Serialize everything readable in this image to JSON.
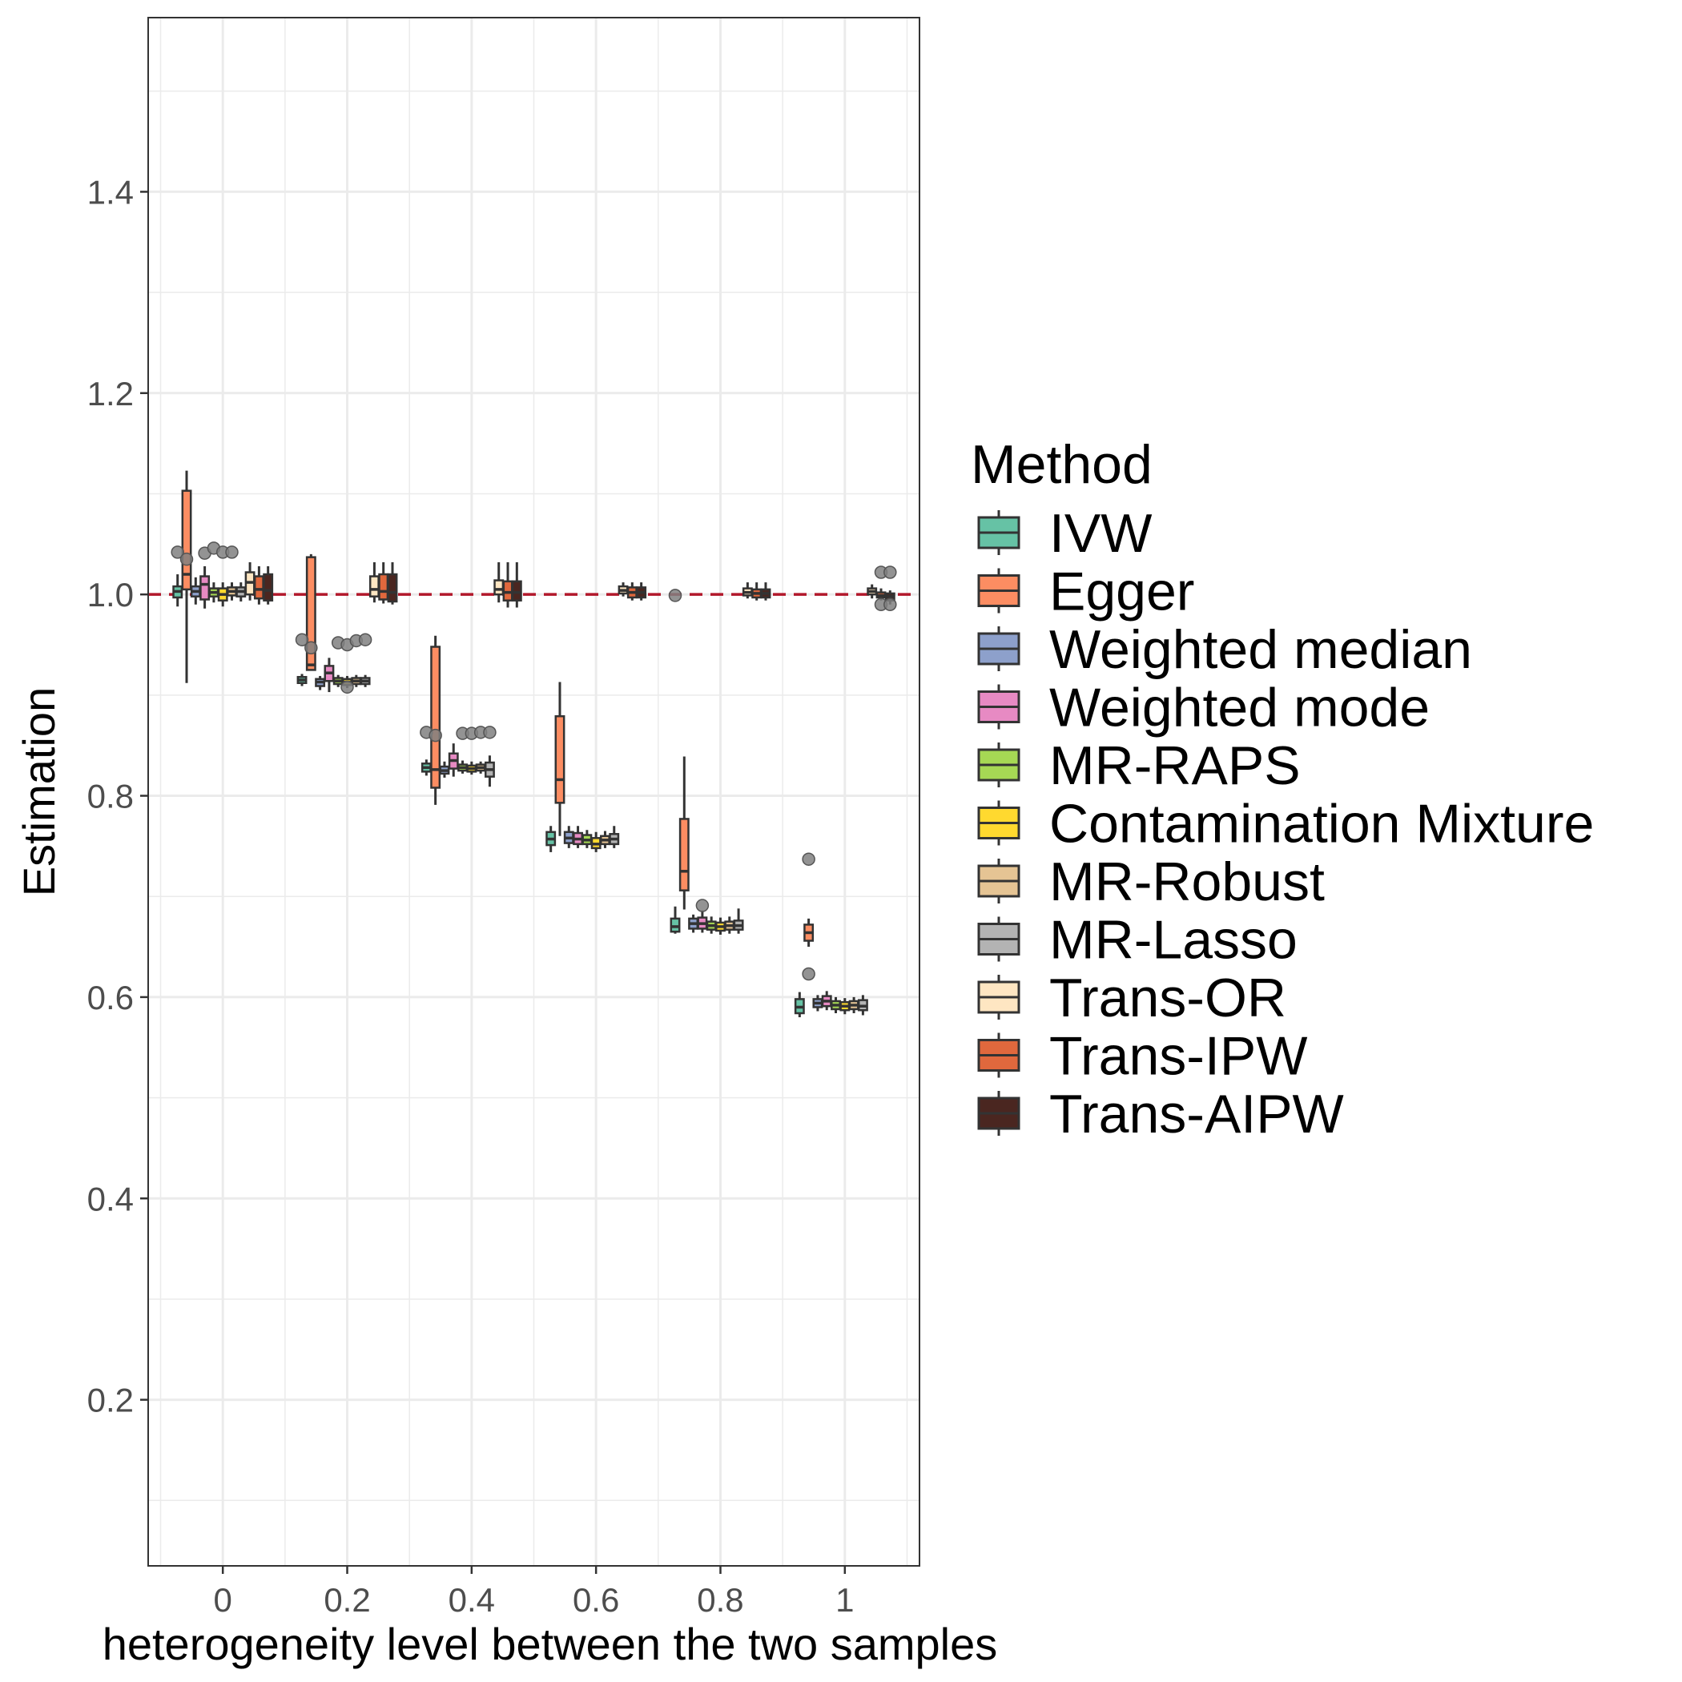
{
  "chart_data": {
    "type": "box",
    "xlabel": "heterogeneity level between the two samples",
    "ylabel": "Estimation",
    "x_ticks": [
      "0",
      "0.2",
      "0.4",
      "0.6",
      "0.8",
      "1"
    ],
    "x_tick_values": [
      0,
      0.2,
      0.4,
      0.6,
      0.8,
      1
    ],
    "xlim": [
      -0.12,
      1.12
    ],
    "y_ticks": [
      "0.2",
      "0.4",
      "0.6",
      "0.8",
      "1.0",
      "1.2",
      "1.4"
    ],
    "y_tick_values": [
      0.2,
      0.4,
      0.6,
      0.8,
      1.0,
      1.2,
      1.4
    ],
    "ylim": [
      0.035,
      1.573
    ],
    "grid": true,
    "reference_line": {
      "y": 1.0,
      "color": "#b2182b",
      "style": "dashed"
    },
    "legend": {
      "title": "Method",
      "position": "right"
    },
    "colors": {
      "IVW": "#66c2a5",
      "Egger": "#fc8d62",
      "Weighted median": "#8da0cb",
      "Weighted mode": "#e78ac3",
      "MR-RAPS": "#a6d854",
      "Contamination Mixture": "#ffd92f",
      "MR-Robust": "#e5c494",
      "MR-Lasso": "#b3b3b3",
      "Trans-OR": "#fee6c2",
      "Trans-IPW": "#e0683d",
      "Trans-AIPW": "#4a2620"
    },
    "series": [
      {
        "name": "IVW",
        "boxes": [
          {
            "x": 0,
            "q1": 0.997,
            "median": 1.003,
            "q3": 1.008,
            "lo": 0.988,
            "hi": 1.02
          },
          {
            "x": 0.2,
            "q1": 0.912,
            "median": 0.915,
            "q3": 0.918,
            "lo": 0.909,
            "hi": 0.921
          },
          {
            "x": 0.4,
            "q1": 0.824,
            "median": 0.828,
            "q3": 0.832,
            "lo": 0.82,
            "hi": 0.836
          },
          {
            "x": 0.6,
            "q1": 0.751,
            "median": 0.757,
            "q3": 0.764,
            "lo": 0.744,
            "hi": 0.77
          },
          {
            "x": 0.8,
            "q1": 0.665,
            "median": 0.67,
            "q3": 0.678,
            "lo": 0.663,
            "hi": 0.69
          },
          {
            "x": 1,
            "q1": 0.584,
            "median": 0.59,
            "q3": 0.598,
            "lo": 0.58,
            "hi": 0.605
          }
        ]
      },
      {
        "name": "Egger",
        "boxes": [
          {
            "x": 0,
            "q1": 1.005,
            "median": 1.02,
            "q3": 1.103,
            "lo": 0.912,
            "hi": 1.123
          },
          {
            "x": 0.2,
            "q1": 0.925,
            "median": 0.93,
            "q3": 1.037,
            "lo": 0.925,
            "hi": 1.04
          },
          {
            "x": 0.4,
            "q1": 0.808,
            "median": 0.826,
            "q3": 0.948,
            "lo": 0.791,
            "hi": 0.959
          },
          {
            "x": 0.6,
            "q1": 0.793,
            "median": 0.816,
            "q3": 0.879,
            "lo": 0.76,
            "hi": 0.913
          },
          {
            "x": 0.8,
            "q1": 0.706,
            "median": 0.725,
            "q3": 0.777,
            "lo": 0.687,
            "hi": 0.839
          },
          {
            "x": 1,
            "q1": 0.656,
            "median": 0.664,
            "q3": 0.672,
            "lo": 0.65,
            "hi": 0.678
          }
        ]
      },
      {
        "name": "Weighted median",
        "boxes": [
          {
            "x": 0,
            "q1": 0.998,
            "median": 1.003,
            "q3": 1.008,
            "lo": 0.99,
            "hi": 1.017
          },
          {
            "x": 0.2,
            "q1": 0.909,
            "median": 0.913,
            "q3": 0.916,
            "lo": 0.905,
            "hi": 0.919
          },
          {
            "x": 0.4,
            "q1": 0.822,
            "median": 0.825,
            "q3": 0.829,
            "lo": 0.818,
            "hi": 0.834
          },
          {
            "x": 0.6,
            "q1": 0.753,
            "median": 0.758,
            "q3": 0.764,
            "lo": 0.748,
            "hi": 0.77
          },
          {
            "x": 0.8,
            "q1": 0.668,
            "median": 0.673,
            "q3": 0.678,
            "lo": 0.664,
            "hi": 0.682
          },
          {
            "x": 1,
            "q1": 0.59,
            "median": 0.594,
            "q3": 0.598,
            "lo": 0.586,
            "hi": 0.602
          }
        ]
      },
      {
        "name": "Weighted mode",
        "boxes": [
          {
            "x": 0,
            "q1": 0.995,
            "median": 1.01,
            "q3": 1.018,
            "lo": 0.986,
            "hi": 1.028
          },
          {
            "x": 0.2,
            "q1": 0.914,
            "median": 0.922,
            "q3": 0.929,
            "lo": 0.903,
            "hi": 0.937
          },
          {
            "x": 0.4,
            "q1": 0.827,
            "median": 0.835,
            "q3": 0.842,
            "lo": 0.819,
            "hi": 0.852
          },
          {
            "x": 0.6,
            "q1": 0.752,
            "median": 0.757,
            "q3": 0.763,
            "lo": 0.748,
            "hi": 0.77
          },
          {
            "x": 0.8,
            "q1": 0.668,
            "median": 0.673,
            "q3": 0.679,
            "lo": 0.664,
            "hi": 0.686
          },
          {
            "x": 1,
            "q1": 0.591,
            "median": 0.596,
            "q3": 0.601,
            "lo": 0.587,
            "hi": 0.606
          }
        ]
      },
      {
        "name": "MR-RAPS",
        "boxes": [
          {
            "x": 0,
            "q1": 0.998,
            "median": 1.002,
            "q3": 1.006,
            "lo": 0.992,
            "hi": 1.012
          },
          {
            "x": 0.2,
            "q1": 0.911,
            "median": 0.914,
            "q3": 0.917,
            "lo": 0.908,
            "hi": 0.92
          },
          {
            "x": 0.4,
            "q1": 0.825,
            "median": 0.828,
            "q3": 0.831,
            "lo": 0.822,
            "hi": 0.835
          },
          {
            "x": 0.6,
            "q1": 0.752,
            "median": 0.756,
            "q3": 0.761,
            "lo": 0.748,
            "hi": 0.766
          },
          {
            "x": 0.8,
            "q1": 0.667,
            "median": 0.671,
            "q3": 0.675,
            "lo": 0.663,
            "hi": 0.68
          },
          {
            "x": 1,
            "q1": 0.588,
            "median": 0.592,
            "q3": 0.596,
            "lo": 0.584,
            "hi": 0.6
          }
        ]
      },
      {
        "name": "Contamination Mixture",
        "boxes": [
          {
            "x": 0,
            "q1": 0.994,
            "median": 1.0,
            "q3": 1.006,
            "lo": 0.988,
            "hi": 1.012
          },
          {
            "x": 0.2,
            "q1": 0.91,
            "median": 0.913,
            "q3": 0.916,
            "lo": 0.907,
            "hi": 0.919
          },
          {
            "x": 0.4,
            "q1": 0.824,
            "median": 0.827,
            "q3": 0.83,
            "lo": 0.821,
            "hi": 0.834
          },
          {
            "x": 0.6,
            "q1": 0.748,
            "median": 0.752,
            "q3": 0.758,
            "lo": 0.744,
            "hi": 0.764
          },
          {
            "x": 0.8,
            "q1": 0.666,
            "median": 0.67,
            "q3": 0.674,
            "lo": 0.662,
            "hi": 0.679
          },
          {
            "x": 1,
            "q1": 0.587,
            "median": 0.591,
            "q3": 0.595,
            "lo": 0.583,
            "hi": 0.599
          }
        ]
      },
      {
        "name": "MR-Robust",
        "boxes": [
          {
            "x": 0,
            "q1": 0.999,
            "median": 1.003,
            "q3": 1.007,
            "lo": 0.994,
            "hi": 1.012
          },
          {
            "x": 0.2,
            "q1": 0.911,
            "median": 0.914,
            "q3": 0.917,
            "lo": 0.908,
            "hi": 0.92
          },
          {
            "x": 0.4,
            "q1": 0.825,
            "median": 0.828,
            "q3": 0.831,
            "lo": 0.822,
            "hi": 0.834
          },
          {
            "x": 0.6,
            "q1": 0.752,
            "median": 0.756,
            "q3": 0.76,
            "lo": 0.748,
            "hi": 0.765
          },
          {
            "x": 0.8,
            "q1": 0.667,
            "median": 0.671,
            "q3": 0.675,
            "lo": 0.663,
            "hi": 0.68
          },
          {
            "x": 1,
            "q1": 0.588,
            "median": 0.592,
            "q3": 0.596,
            "lo": 0.584,
            "hi": 0.6
          }
        ]
      },
      {
        "name": "MR-Lasso",
        "boxes": [
          {
            "x": 0,
            "q1": 0.998,
            "median": 1.003,
            "q3": 1.007,
            "lo": 0.993,
            "hi": 1.012
          },
          {
            "x": 0.2,
            "q1": 0.911,
            "median": 0.914,
            "q3": 0.917,
            "lo": 0.908,
            "hi": 0.92
          },
          {
            "x": 0.4,
            "q1": 0.819,
            "median": 0.826,
            "q3": 0.833,
            "lo": 0.809,
            "hi": 0.84
          },
          {
            "x": 0.6,
            "q1": 0.752,
            "median": 0.757,
            "q3": 0.762,
            "lo": 0.748,
            "hi": 0.77
          },
          {
            "x": 0.8,
            "q1": 0.667,
            "median": 0.671,
            "q3": 0.676,
            "lo": 0.663,
            "hi": 0.688
          },
          {
            "x": 1,
            "q1": 0.587,
            "median": 0.591,
            "q3": 0.597,
            "lo": 0.582,
            "hi": 0.602
          }
        ]
      },
      {
        "name": "Trans-OR",
        "boxes": [
          {
            "x": 0,
            "q1": 1.0,
            "median": 1.012,
            "q3": 1.022,
            "lo": 0.994,
            "hi": 1.032
          },
          {
            "x": 0.2,
            "q1": 0.998,
            "median": 1.005,
            "q3": 1.018,
            "lo": 0.992,
            "hi": 1.032
          },
          {
            "x": 0.4,
            "q1": 1.0,
            "median": 1.005,
            "q3": 1.014,
            "lo": 0.992,
            "hi": 1.032
          },
          {
            "x": 0.6,
            "q1": 1.001,
            "median": 1.004,
            "q3": 1.008,
            "lo": 0.998,
            "hi": 1.012
          },
          {
            "x": 0.8,
            "q1": 0.999,
            "median": 1.002,
            "q3": 1.006,
            "lo": 0.996,
            "hi": 1.012
          },
          {
            "x": 1,
            "q1": 1.0,
            "median": 1.003,
            "q3": 1.006,
            "lo": 0.996,
            "hi": 1.01
          }
        ]
      },
      {
        "name": "Trans-IPW",
        "boxes": [
          {
            "x": 0,
            "q1": 0.996,
            "median": 1.005,
            "q3": 1.018,
            "lo": 0.99,
            "hi": 1.028
          },
          {
            "x": 0.2,
            "q1": 0.995,
            "median": 1.003,
            "q3": 1.02,
            "lo": 0.991,
            "hi": 1.032
          },
          {
            "x": 0.4,
            "q1": 0.994,
            "median": 1.002,
            "q3": 1.013,
            "lo": 0.987,
            "hi": 1.032
          },
          {
            "x": 0.6,
            "q1": 0.997,
            "median": 1.002,
            "q3": 1.007,
            "lo": 0.994,
            "hi": 1.012
          },
          {
            "x": 0.8,
            "q1": 0.997,
            "median": 1.001,
            "q3": 1.005,
            "lo": 0.994,
            "hi": 1.012
          },
          {
            "x": 1,
            "q1": 0.997,
            "median": 0.999,
            "q3": 1.002,
            "lo": 0.994,
            "hi": 1.006
          }
        ]
      },
      {
        "name": "Trans-AIPW",
        "boxes": [
          {
            "x": 0,
            "q1": 0.994,
            "median": 1.004,
            "q3": 1.02,
            "lo": 0.99,
            "hi": 1.028
          },
          {
            "x": 0.2,
            "q1": 0.993,
            "median": 1.002,
            "q3": 1.02,
            "lo": 0.99,
            "hi": 1.032
          },
          {
            "x": 0.4,
            "q1": 0.994,
            "median": 1.002,
            "q3": 1.013,
            "lo": 0.987,
            "hi": 1.032
          },
          {
            "x": 0.6,
            "q1": 0.997,
            "median": 1.002,
            "q3": 1.007,
            "lo": 0.994,
            "hi": 1.012
          },
          {
            "x": 0.8,
            "q1": 0.997,
            "median": 1.001,
            "q3": 1.005,
            "lo": 0.994,
            "hi": 1.012
          },
          {
            "x": 1,
            "q1": 0.994,
            "median": 0.998,
            "q3": 1.001,
            "lo": 0.99,
            "hi": 1.004
          }
        ]
      }
    ],
    "outliers": [
      {
        "x": 0,
        "y": 1.042,
        "series": "IVW"
      },
      {
        "x": 0,
        "y": 1.035,
        "series": "Egger"
      },
      {
        "x": 0,
        "y": 1.041,
        "series": "Weighted mode"
      },
      {
        "x": 0,
        "y": 1.046,
        "series": "MR-RAPS"
      },
      {
        "x": 0,
        "y": 1.042,
        "series": "Contamination Mixture"
      },
      {
        "x": 0,
        "y": 1.042,
        "series": "MR-Robust"
      },
      {
        "x": 0.2,
        "y": 0.955,
        "series": "IVW"
      },
      {
        "x": 0.2,
        "y": 0.947,
        "series": "Egger"
      },
      {
        "x": 0.2,
        "y": 0.952,
        "series": "MR-RAPS"
      },
      {
        "x": 0.2,
        "y": 0.95,
        "series": "Contamination Mixture"
      },
      {
        "x": 0.2,
        "y": 0.954,
        "series": "MR-Robust"
      },
      {
        "x": 0.2,
        "y": 0.955,
        "series": "MR-Lasso"
      },
      {
        "x": 0.2,
        "y": 0.908,
        "series": "Contamination Mixture"
      },
      {
        "x": 0.4,
        "y": 0.863,
        "series": "IVW"
      },
      {
        "x": 0.4,
        "y": 0.86,
        "series": "Egger"
      },
      {
        "x": 0.4,
        "y": 0.862,
        "series": "MR-RAPS"
      },
      {
        "x": 0.4,
        "y": 0.862,
        "series": "Contamination Mixture"
      },
      {
        "x": 0.4,
        "y": 0.863,
        "series": "MR-Robust"
      },
      {
        "x": 0.4,
        "y": 0.863,
        "series": "MR-Lasso"
      },
      {
        "x": 0.8,
        "y": 0.691,
        "series": "Weighted mode"
      },
      {
        "x": 0.8,
        "y": 0.999,
        "series": "IVW"
      },
      {
        "x": 1,
        "y": 0.737,
        "series": "Egger"
      },
      {
        "x": 1,
        "y": 0.623,
        "series": "Egger"
      },
      {
        "x": 1,
        "y": 1.022,
        "series": "Trans-IPW"
      },
      {
        "x": 1,
        "y": 1.022,
        "series": "Trans-AIPW"
      },
      {
        "x": 1,
        "y": 0.99,
        "series": "Trans-IPW"
      },
      {
        "x": 1,
        "y": 0.99,
        "series": "Trans-AIPW"
      }
    ]
  }
}
